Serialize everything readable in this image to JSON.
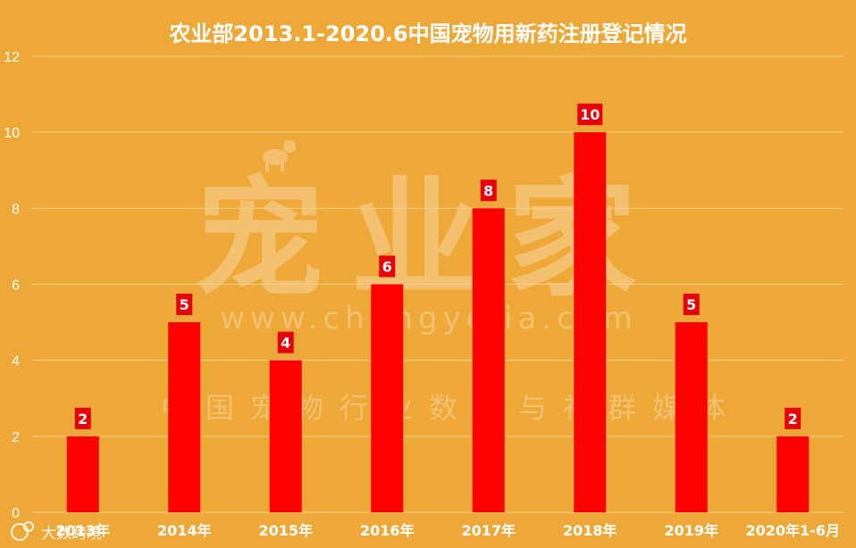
{
  "chart_data": {
    "type": "bar",
    "title": "农业部2013.1-2020.6中国宠物用新药注册登记情况",
    "categories": [
      "2013年",
      "2014年",
      "2015年",
      "2016年",
      "2017年",
      "2018年",
      "2019年",
      "2020年1-6月"
    ],
    "values": [
      2,
      5,
      4,
      6,
      8,
      10,
      5,
      2
    ],
    "data_labels": [
      "2",
      "5",
      "4",
      "6",
      "8",
      "10",
      "5",
      "2"
    ],
    "xlabel": "",
    "ylabel": "",
    "ylim": [
      0,
      12
    ],
    "yticks": [
      "0",
      "2",
      "4",
      "6",
      "8",
      "10",
      "12"
    ],
    "grid": true,
    "colors": {
      "background": "#EDA838",
      "bar": "#FF0000",
      "label_box": "#E8000B",
      "text": "#FFFFFF",
      "grid": "#F4CE8C"
    }
  },
  "watermark": {
    "main": "宠业家",
    "url": "www.chongyejia.com",
    "tagline": "中国宠物行业数据与社群媒体"
  },
  "footer_logo": {
    "text": "大数跨境"
  }
}
